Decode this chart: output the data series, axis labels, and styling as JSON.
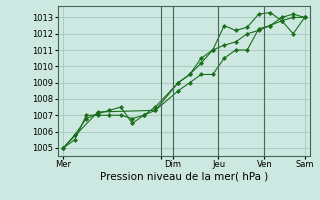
{
  "bg_color": "#cce8e0",
  "grid_color": "#a0c0b8",
  "line_color": "#1a6e1a",
  "marker_color": "#1a6e1a",
  "xlabel": "Pression niveau de la mer( hPa )",
  "xlabel_fontsize": 7.5,
  "tick_fontsize": 6,
  "ylim": [
    1004.5,
    1013.7
  ],
  "yticks": [
    1005,
    1006,
    1007,
    1008,
    1009,
    1010,
    1011,
    1012,
    1013
  ],
  "xlim": [
    0,
    22
  ],
  "xtick_positions": [
    0.5,
    9,
    10,
    14,
    18,
    21.5
  ],
  "xtick_labels": [
    "Mer",
    "",
    "Dim",
    "Jeu",
    "Ven",
    "Sam"
  ],
  "vline_positions": [
    9,
    10,
    14,
    18
  ],
  "series1_x": [
    0.5,
    1.5,
    2.5,
    3.5,
    4.5,
    5.5,
    6.5,
    7.5,
    8.5,
    10.5,
    11.5,
    12.5,
    13.5,
    14.5,
    15.5,
    16.5,
    17.5,
    18.5,
    19.5,
    20.5,
    21.5
  ],
  "series1_y": [
    1005.0,
    1005.5,
    1007.0,
    1007.0,
    1007.0,
    1007.0,
    1006.8,
    1007.0,
    1007.3,
    1008.5,
    1009.0,
    1009.5,
    1009.5,
    1010.5,
    1011.0,
    1011.0,
    1012.3,
    1012.5,
    1013.0,
    1013.2,
    1013.0
  ],
  "series2_x": [
    0.5,
    1.5,
    2.5,
    3.5,
    4.5,
    5.5,
    6.5,
    7.5,
    8.5,
    10.5,
    11.5,
    12.5,
    13.5,
    14.5,
    15.5,
    16.5,
    17.5,
    18.5,
    19.5,
    20.5,
    21.5
  ],
  "series2_y": [
    1005.0,
    1005.8,
    1006.8,
    1007.1,
    1007.3,
    1007.5,
    1006.5,
    1007.0,
    1007.5,
    1009.0,
    1009.5,
    1010.5,
    1011.0,
    1012.5,
    1012.2,
    1012.4,
    1013.2,
    1013.3,
    1012.8,
    1012.0,
    1013.0
  ],
  "series3_x": [
    0.5,
    3.5,
    8.5,
    10.5,
    11.5,
    12.5,
    13.5,
    14.5,
    15.5,
    16.5,
    17.5,
    18.5,
    19.5,
    20.5,
    21.5
  ],
  "series3_y": [
    1005.0,
    1007.2,
    1007.3,
    1009.0,
    1009.5,
    1010.2,
    1011.0,
    1011.3,
    1011.5,
    1012.0,
    1012.2,
    1012.5,
    1012.8,
    1013.0,
    1013.0
  ]
}
